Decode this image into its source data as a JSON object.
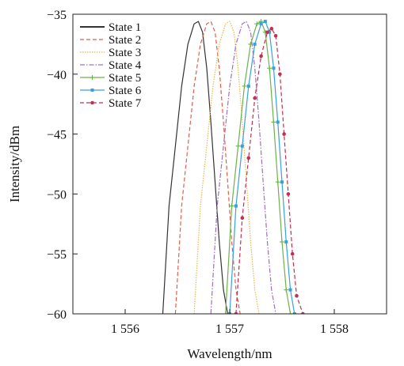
{
  "chart_data": {
    "type": "line",
    "xlabel": "Wavelength/nm",
    "ylabel": "Intensity/dBm",
    "xlim": [
      1555.5,
      1558.5
    ],
    "ylim": [
      -60,
      -35
    ],
    "xticks": [
      1556,
      1557,
      1558
    ],
    "xtick_labels": [
      "1 556",
      "1 557",
      "1 558"
    ],
    "yticks": [
      -35,
      -40,
      -45,
      -50,
      -55,
      -60
    ],
    "ytick_labels": [
      "−35",
      "−40",
      "−45",
      "−50",
      "−55",
      "−60"
    ],
    "grid": false,
    "legend_position": "top-left",
    "series": [
      {
        "name": "State 1",
        "color": "#333333",
        "dash": "",
        "marker": "none",
        "x": [
          1556.36,
          1556.42,
          1556.48,
          1556.54,
          1556.6,
          1556.66,
          1556.7,
          1556.74,
          1556.78,
          1556.82,
          1556.86,
          1556.9,
          1556.94,
          1556.98
        ],
        "y": [
          -60,
          -51,
          -46,
          -41,
          -37.5,
          -35.8,
          -35.6,
          -36.5,
          -39.5,
          -44,
          -49,
          -54,
          -58,
          -60
        ]
      },
      {
        "name": "State 2",
        "color": "#e0604a",
        "dash": "5,3",
        "marker": "none",
        "x": [
          1556.48,
          1556.54,
          1556.6,
          1556.66,
          1556.72,
          1556.78,
          1556.82,
          1556.86,
          1556.9,
          1556.94,
          1556.98,
          1557.02,
          1557.06,
          1557.1
        ],
        "y": [
          -60,
          -51,
          -46,
          -41,
          -37.5,
          -35.8,
          -35.6,
          -36.5,
          -39.5,
          -44,
          -49,
          -54,
          -58,
          -60
        ]
      },
      {
        "name": "State 3",
        "color": "#e8b84a",
        "dash": "1.5,1.5",
        "marker": "none",
        "x": [
          1556.66,
          1556.72,
          1556.78,
          1556.84,
          1556.9,
          1556.96,
          1557.0,
          1557.04,
          1557.08,
          1557.12,
          1557.16,
          1557.2,
          1557.24,
          1557.28
        ],
        "y": [
          -60,
          -51,
          -46,
          -41,
          -37.5,
          -35.8,
          -35.6,
          -36.5,
          -39.5,
          -44,
          -49,
          -54,
          -58,
          -60
        ]
      },
      {
        "name": "State 4",
        "color": "#a070c0",
        "dash": "6,2,1.5,2",
        "marker": "none",
        "x": [
          1556.82,
          1556.88,
          1556.94,
          1557.0,
          1557.06,
          1557.12,
          1557.16,
          1557.2,
          1557.24,
          1557.28,
          1557.32,
          1557.36,
          1557.4,
          1557.44
        ],
        "y": [
          -60,
          -51,
          -46,
          -41,
          -37.5,
          -35.8,
          -35.6,
          -36.5,
          -39.5,
          -44,
          -49,
          -54,
          -58,
          -60
        ]
      },
      {
        "name": "State 5",
        "color": "#6cb24a",
        "dash": "",
        "marker": "plus",
        "x": [
          1556.96,
          1557.02,
          1557.08,
          1557.14,
          1557.2,
          1557.26,
          1557.3,
          1557.34,
          1557.38,
          1557.42,
          1557.46,
          1557.5,
          1557.54,
          1557.58
        ],
        "y": [
          -60,
          -51,
          -46,
          -41,
          -37.5,
          -35.8,
          -35.6,
          -36.5,
          -39.5,
          -44,
          -49,
          -54,
          -58,
          -60
        ]
      },
      {
        "name": "State 6",
        "color": "#3aa0d8",
        "dash": "",
        "marker": "square",
        "x": [
          1557.0,
          1557.06,
          1557.12,
          1557.18,
          1557.24,
          1557.3,
          1557.34,
          1557.38,
          1557.42,
          1557.46,
          1557.5,
          1557.54,
          1557.58,
          1557.62
        ],
        "y": [
          -60,
          -51,
          -46,
          -41,
          -37.5,
          -35.8,
          -35.6,
          -36.5,
          -39.5,
          -44,
          -49,
          -54,
          -58,
          -60
        ]
      },
      {
        "name": "State 7",
        "color": "#c03050",
        "dash": "5,3",
        "marker": "circle",
        "x": [
          1557.06,
          1557.12,
          1557.18,
          1557.24,
          1557.3,
          1557.36,
          1557.4,
          1557.44,
          1557.48,
          1557.52,
          1557.56,
          1557.6,
          1557.64,
          1557.7
        ],
        "y": [
          -60,
          -52,
          -47,
          -42,
          -38.5,
          -36.5,
          -36.2,
          -36.8,
          -40,
          -45,
          -50,
          -55,
          -58.5,
          -60
        ]
      }
    ]
  }
}
